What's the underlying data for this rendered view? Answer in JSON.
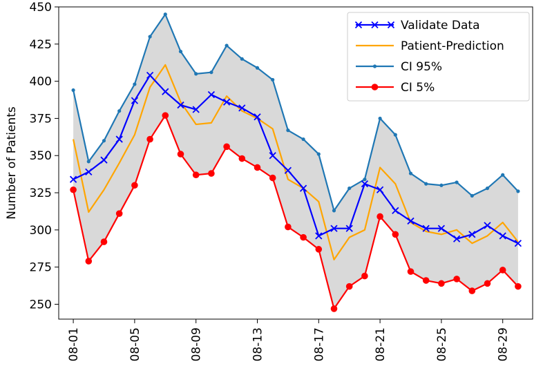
{
  "chart_data": {
    "type": "line",
    "title": "",
    "xlabel": "",
    "ylabel": "Number of Patients",
    "ylim": [
      240,
      450
    ],
    "yticks": [
      250,
      275,
      300,
      325,
      350,
      375,
      400,
      425,
      450
    ],
    "xtick_labels": [
      "08-01",
      "08-05",
      "08-09",
      "08-13",
      "08-17",
      "08-21",
      "08-25",
      "08-29"
    ],
    "xtick_days": [
      1,
      5,
      9,
      13,
      17,
      21,
      25,
      29
    ],
    "x": [
      1,
      2,
      3,
      4,
      5,
      6,
      7,
      8,
      9,
      10,
      11,
      12,
      13,
      14,
      15,
      16,
      17,
      18,
      19,
      20,
      21,
      22,
      23,
      24,
      25,
      26,
      27,
      28,
      29,
      30
    ],
    "grid": false,
    "legend_position": "top-right",
    "shaded_band": {
      "between": [
        "CI 5%",
        "CI 95%"
      ],
      "color": "#d9d9d9"
    },
    "series": [
      {
        "name": "Validate Data",
        "color": "#0000ff",
        "marker": "x",
        "values": [
          334,
          339,
          347,
          361,
          387,
          404,
          393,
          384,
          381,
          391,
          386,
          382,
          376,
          350,
          340,
          328,
          296,
          301,
          301,
          331,
          327,
          313,
          306,
          301,
          301,
          294,
          297,
          303,
          296,
          291
        ]
      },
      {
        "name": "Patient-Prediction",
        "color": "#ffa500",
        "marker": "none",
        "values": [
          361,
          312,
          327,
          345,
          364,
          396,
          411,
          386,
          371,
          372,
          390,
          380,
          375,
          368,
          334,
          328,
          319,
          280,
          295,
          300,
          342,
          331,
          305,
          299,
          297,
          300,
          291,
          296,
          305,
          292
        ]
      },
      {
        "name": "CI 95%",
        "color": "#1f77b4",
        "marker": "dot",
        "values": [
          394,
          346,
          360,
          380,
          398,
          430,
          445,
          420,
          405,
          406,
          424,
          415,
          409,
          401,
          367,
          361,
          351,
          313,
          328,
          334,
          375,
          364,
          338,
          331,
          330,
          332,
          323,
          328,
          337,
          326
        ]
      },
      {
        "name": "CI 5%",
        "color": "#ff0000",
        "marker": "circle",
        "values": [
          327,
          279,
          292,
          311,
          330,
          361,
          377,
          351,
          337,
          338,
          356,
          348,
          342,
          335,
          302,
          295,
          287,
          247,
          262,
          269,
          309,
          297,
          272,
          266,
          264,
          267,
          259,
          264,
          273,
          262
        ]
      }
    ]
  }
}
